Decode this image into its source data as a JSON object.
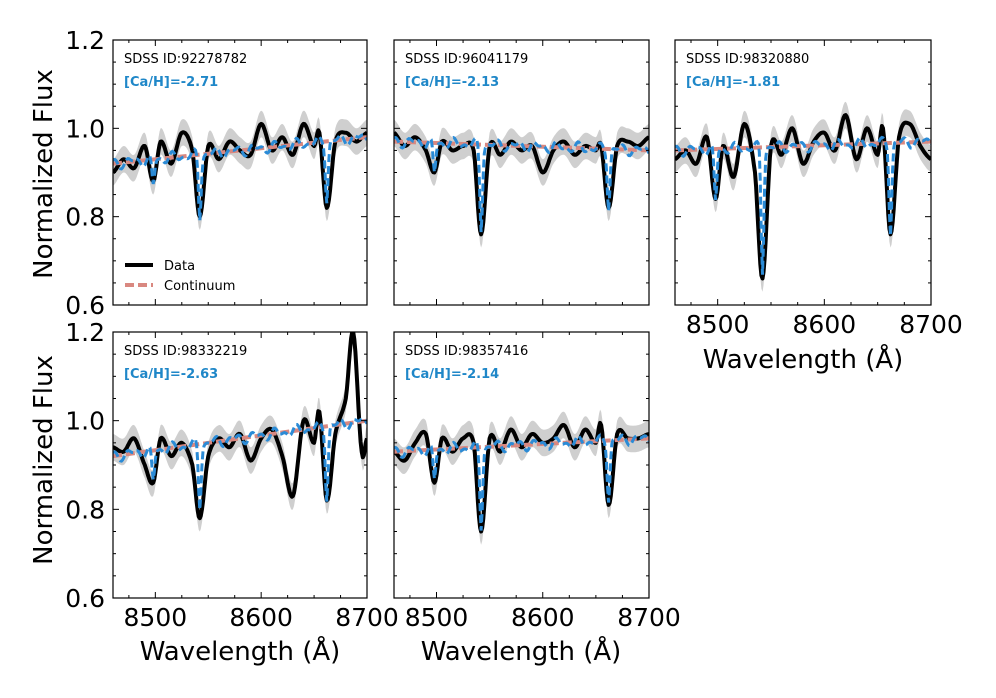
{
  "colors": {
    "data": "#000000",
    "model": "#2b8bd6",
    "continuum": "#d98880",
    "band": "#cfcfcf",
    "ca_text": "#1f87c8"
  },
  "axis_labels": {
    "ylabel": "Normalized Flux",
    "xlabel": "Wavelength (Å)"
  },
  "legend": {
    "data_label": "Data",
    "continuum_label": "Continuum"
  },
  "chart_data": {
    "type": "line",
    "x_range": [
      8460,
      8700
    ],
    "y_range": [
      0.6,
      1.2
    ],
    "x_ticks": [
      8500,
      8600,
      8700
    ],
    "y_ticks": [
      0.6,
      0.8,
      1.0,
      1.2
    ],
    "x_tick_labels": [
      "8500",
      "8600",
      "8700"
    ],
    "y_tick_labels": [
      "0.6",
      "0.8",
      "1.0",
      "1.2"
    ],
    "line_centers": [
      8498,
      8542,
      8662
    ],
    "panels": [
      {
        "id_label": "SDSS ID:92278782",
        "ca_label": "[Ca/H]=-2.71",
        "continuum": [
          0.92,
          0.98
        ],
        "line_depths": [
          0.06,
          0.14,
          0.13
        ],
        "data_x": [
          8460,
          8470,
          8480,
          8490,
          8498,
          8505,
          8515,
          8525,
          8535,
          8542,
          8550,
          8560,
          8570,
          8580,
          8590,
          8600,
          8610,
          8620,
          8630,
          8640,
          8650,
          8655,
          8662,
          8670,
          8680,
          8690,
          8700
        ],
        "data_y": [
          0.9,
          0.93,
          0.91,
          0.96,
          0.88,
          0.97,
          0.92,
          0.99,
          0.95,
          0.8,
          0.96,
          0.93,
          0.97,
          0.95,
          0.94,
          1.01,
          0.95,
          0.98,
          0.94,
          1.01,
          0.96,
          0.99,
          0.82,
          0.97,
          0.99,
          0.97,
          0.99
        ]
      },
      {
        "id_label": "SDSS ID:96041179",
        "ca_label": "[Ca/H]=-2.13",
        "continuum": [
          0.97,
          0.95
        ],
        "line_depths": [
          0.07,
          0.19,
          0.13
        ],
        "data_x": [
          8460,
          8470,
          8480,
          8490,
          8498,
          8505,
          8515,
          8525,
          8535,
          8542,
          8550,
          8560,
          8570,
          8580,
          8590,
          8600,
          8610,
          8620,
          8630,
          8640,
          8650,
          8655,
          8662,
          8670,
          8680,
          8690,
          8700
        ],
        "data_y": [
          0.99,
          0.96,
          0.98,
          0.95,
          0.9,
          0.97,
          0.95,
          0.96,
          0.95,
          0.76,
          0.96,
          0.94,
          0.97,
          0.95,
          0.96,
          0.9,
          0.95,
          0.97,
          0.94,
          0.96,
          0.95,
          0.96,
          0.82,
          0.96,
          0.97,
          0.96,
          0.98
        ]
      },
      {
        "id_label": "SDSS ID:98320880",
        "ca_label": "[Ca/H]=-1.81",
        "continuum": [
          0.95,
          0.97
        ],
        "line_depths": [
          0.12,
          0.28,
          0.2
        ],
        "data_x": [
          8460,
          8470,
          8480,
          8490,
          8498,
          8505,
          8515,
          8525,
          8535,
          8542,
          8550,
          8560,
          8570,
          8580,
          8590,
          8600,
          8610,
          8620,
          8630,
          8640,
          8650,
          8655,
          8662,
          8670,
          8680,
          8690,
          8700
        ],
        "data_y": [
          0.93,
          0.95,
          0.92,
          0.98,
          0.84,
          0.96,
          0.89,
          1.01,
          0.9,
          0.66,
          0.96,
          0.94,
          1.0,
          0.92,
          0.97,
          0.99,
          0.95,
          1.03,
          0.93,
          1.0,
          0.94,
          1.0,
          0.76,
          0.98,
          1.01,
          0.96,
          0.93
        ]
      },
      {
        "id_label": "SDSS ID:98332219",
        "ca_label": "[Ca/H]=-2.63",
        "continuum": [
          0.92,
          1.0
        ],
        "line_depths": [
          0.07,
          0.14,
          0.16
        ],
        "data_x": [
          8460,
          8470,
          8480,
          8490,
          8498,
          8505,
          8515,
          8525,
          8535,
          8542,
          8550,
          8560,
          8570,
          8580,
          8590,
          8600,
          8610,
          8620,
          8630,
          8640,
          8650,
          8655,
          8662,
          8670,
          8680,
          8687,
          8695,
          8700
        ],
        "data_y": [
          0.94,
          0.93,
          0.96,
          0.9,
          0.86,
          0.96,
          0.92,
          0.95,
          0.9,
          0.78,
          0.92,
          0.96,
          0.94,
          0.97,
          0.91,
          0.96,
          0.98,
          0.92,
          0.83,
          1.0,
          0.95,
          1.02,
          0.82,
          0.97,
          1.05,
          1.2,
          0.93,
          0.96
        ]
      },
      {
        "id_label": "SDSS ID:98357416",
        "ca_label": "[Ca/H]=-2.14",
        "continuum": [
          0.93,
          0.96
        ],
        "line_depths": [
          0.07,
          0.18,
          0.13
        ],
        "data_x": [
          8460,
          8470,
          8480,
          8490,
          8498,
          8505,
          8515,
          8525,
          8535,
          8542,
          8550,
          8560,
          8570,
          8580,
          8590,
          8600,
          8610,
          8620,
          8630,
          8640,
          8650,
          8655,
          8662,
          8670,
          8680,
          8690,
          8700
        ],
        "data_y": [
          0.93,
          0.91,
          0.95,
          0.97,
          0.86,
          0.96,
          0.93,
          0.96,
          0.95,
          0.75,
          0.96,
          0.93,
          0.98,
          0.94,
          0.97,
          0.95,
          0.96,
          0.99,
          0.94,
          0.98,
          0.95,
          0.99,
          0.81,
          0.97,
          0.96,
          0.96,
          0.97
        ]
      }
    ]
  }
}
